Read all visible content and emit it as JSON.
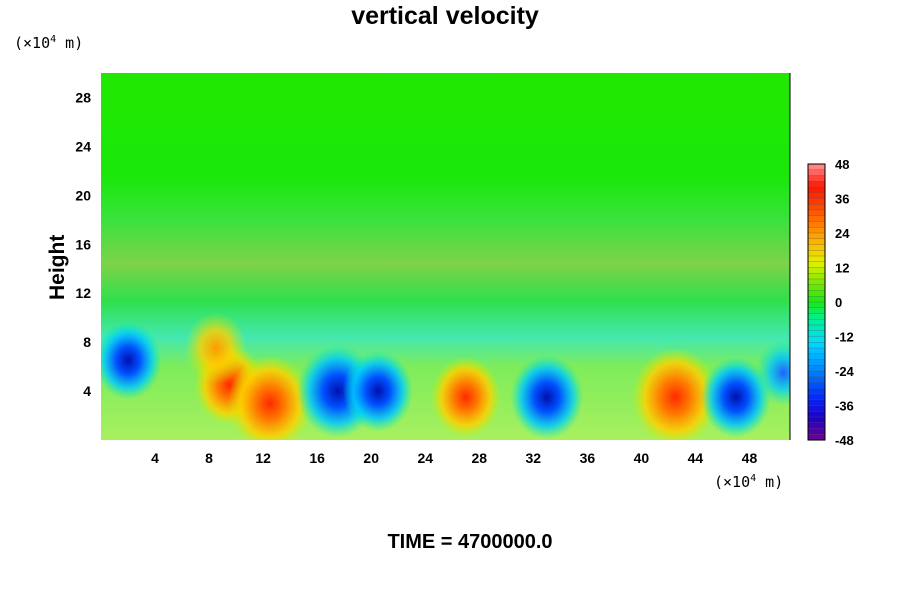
{
  "chart_data": {
    "type": "heatmap",
    "title": "vertical velocity",
    "ylabel": "Height",
    "xlabel": "",
    "x_unit": "(×10⁴ m)",
    "y_unit": "(×10⁴ m)",
    "x_unit_base": "(×10",
    "x_unit_exp": "4",
    "x_unit_tail": " m)",
    "y_unit_base": "(×10",
    "y_unit_exp": "4",
    "y_unit_tail": " m)",
    "xlim": [
      0,
      51
    ],
    "ylim": [
      0,
      30
    ],
    "xticks": [
      "4",
      "8",
      "12",
      "16",
      "20",
      "24",
      "28",
      "32",
      "36",
      "40",
      "44",
      "48"
    ],
    "xtick_values": [
      4,
      8,
      12,
      16,
      20,
      24,
      28,
      32,
      36,
      40,
      44,
      48
    ],
    "yticks": [
      "4",
      "8",
      "12",
      "16",
      "20",
      "24",
      "28"
    ],
    "ytick_values": [
      4,
      8,
      12,
      16,
      20,
      24,
      28
    ],
    "colorbar": {
      "min": -48,
      "max": 48,
      "ticks": [
        "48",
        "36",
        "24",
        "12",
        "0",
        "-12",
        "-24",
        "-36",
        "-48"
      ],
      "tick_values": [
        48,
        36,
        24,
        12,
        0,
        -12,
        -24,
        -36,
        -48
      ]
    },
    "features": [
      {
        "kind": "updraft",
        "x": 9.5,
        "y": 4.5,
        "value": 30
      },
      {
        "kind": "updraft",
        "x": 12.5,
        "y": 3,
        "value": 40
      },
      {
        "kind": "updraft",
        "x": 8.5,
        "y": 7.5,
        "value": 24
      },
      {
        "kind": "downdraft",
        "x": 2,
        "y": 6.5,
        "value": -28
      },
      {
        "kind": "downdraft",
        "x": 17.5,
        "y": 4,
        "value": -38
      },
      {
        "kind": "downdraft",
        "x": 20.5,
        "y": 4,
        "value": -30
      },
      {
        "kind": "updraft",
        "x": 27,
        "y": 3.5,
        "value": 30
      },
      {
        "kind": "downdraft",
        "x": 33,
        "y": 3.5,
        "value": -32
      },
      {
        "kind": "updraft",
        "x": 42.5,
        "y": 3.5,
        "value": 42
      },
      {
        "kind": "downdraft",
        "x": 47,
        "y": 3.5,
        "value": -30
      },
      {
        "kind": "downdraft",
        "x": 50.5,
        "y": 5.5,
        "value": -20
      }
    ],
    "annotation": "TIME = 4700000.0"
  }
}
